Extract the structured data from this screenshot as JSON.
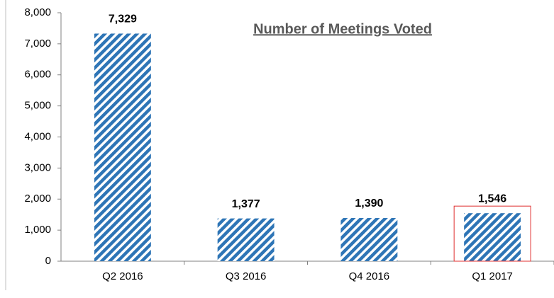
{
  "chart_data": {
    "type": "bar",
    "title": "Number of Meetings Voted",
    "categories": [
      "Q2 2016",
      "Q3 2016",
      "Q4 2016",
      "Q1 2017"
    ],
    "values": [
      7329,
      1377,
      1390,
      1546
    ],
    "value_labels": [
      "7,329",
      "1,377",
      "1,390",
      "1,546"
    ],
    "color": "#2e75b6",
    "ylim": [
      0,
      8000
    ],
    "yticks": [
      0,
      {
        "value": 1000,
        "label": "1,000"
      },
      {
        "value": 2000,
        "label": "2,000"
      },
      {
        "value": 3000,
        "label": "3,000"
      },
      {
        "value": 4000,
        "label": "4,000"
      },
      {
        "value": 5000,
        "label": "5,000"
      },
      {
        "value": 6000,
        "label": "6,000"
      },
      {
        "value": 7000,
        "label": "7,000"
      },
      {
        "value": 8000,
        "label": "8,000"
      }
    ]
  }
}
